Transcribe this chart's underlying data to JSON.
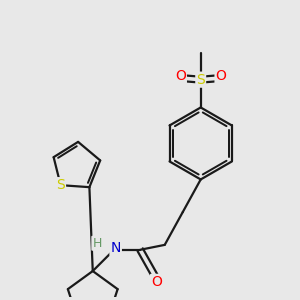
{
  "bg_color": "#e8e8e8",
  "bond_color": "#1a1a1a",
  "bond_width": 1.6,
  "atom_colors": {
    "S_sulfonyl": "#cccc00",
    "O": "#ff0000",
    "N": "#0000cc",
    "S_thio": "#cccc00",
    "H": "#669966",
    "C": "#1a1a1a"
  },
  "fig_width": 3.0,
  "fig_height": 3.0,
  "dpi": 100
}
